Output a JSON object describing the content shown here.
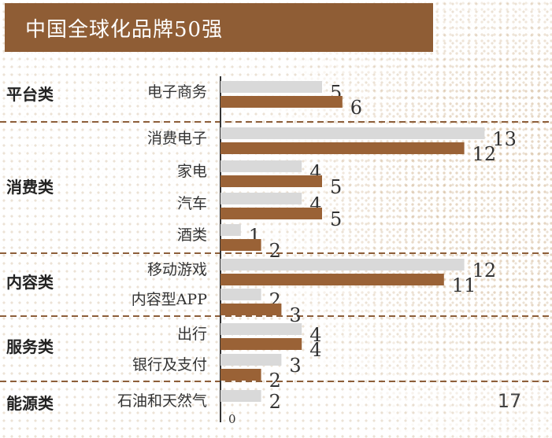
{
  "chart_data": {
    "type": "bar",
    "title": "中国全球化品牌50强",
    "groups": [
      {
        "label": "平台类",
        "items": [
          {
            "label": "电子商务",
            "values": [
              5,
              6
            ]
          }
        ]
      },
      {
        "label": "消费类",
        "items": [
          {
            "label": "消费电子",
            "values": [
              13,
              12
            ]
          },
          {
            "label": "家电",
            "values": [
              4,
              5
            ]
          },
          {
            "label": "汽车",
            "values": [
              4,
              5
            ]
          },
          {
            "label": "酒类",
            "values": [
              1,
              2
            ]
          }
        ]
      },
      {
        "label": "内容类",
        "items": [
          {
            "label": "移动游戏",
            "values": [
              12,
              11
            ]
          },
          {
            "label": "内容型APP",
            "values": [
              2,
              3
            ]
          }
        ]
      },
      {
        "label": "服务类",
        "items": [
          {
            "label": "出行",
            "values": [
              4,
              4
            ]
          },
          {
            "label": "银行及支付",
            "values": [
              3,
              2
            ]
          }
        ]
      },
      {
        "label": "能源类",
        "items": [
          {
            "label": "石油和天然气",
            "values": [
              2,
              0
            ]
          }
        ]
      }
    ],
    "series": [
      {
        "color": "#d9d9d9"
      },
      {
        "color": "#9a6236"
      }
    ],
    "xlim": [
      0,
      13.3
    ],
    "footnote_value": "17"
  }
}
